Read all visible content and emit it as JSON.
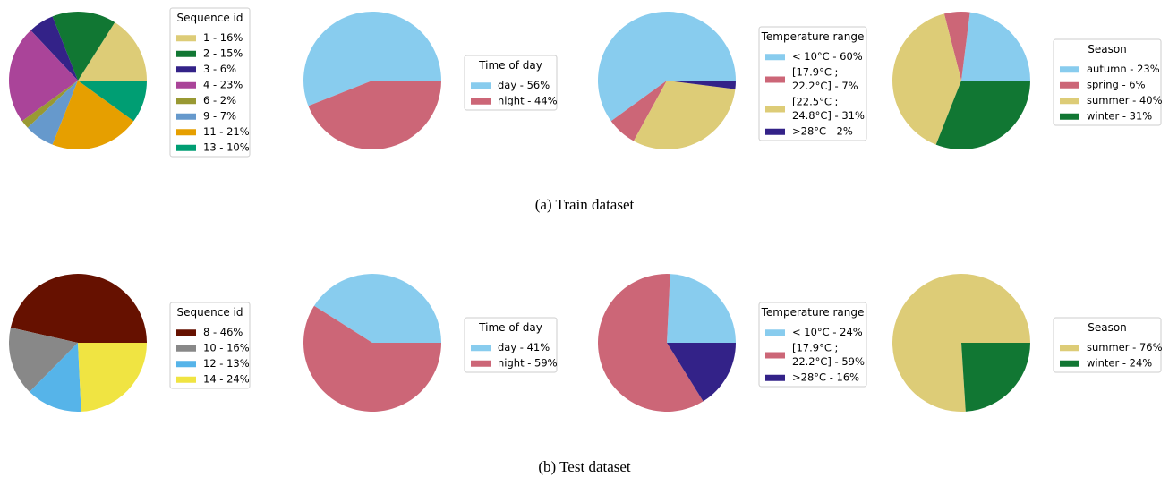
{
  "captions": {
    "train": "(a) Train dataset",
    "test": "(b) Test dataset"
  },
  "chart_data": [
    {
      "type": "pie",
      "panel": "train-sequence",
      "legend_title": "Sequence id",
      "slices": [
        {
          "label": "1 - 16%",
          "value": 16,
          "color": "#DDCC77"
        },
        {
          "label": "2 - 15%",
          "value": 15,
          "color": "#117733"
        },
        {
          "label": "3 - 6%",
          "value": 6,
          "color": "#332288"
        },
        {
          "label": "4 - 23%",
          "value": 23,
          "color": "#AA4499"
        },
        {
          "label": "6 - 2%",
          "value": 2,
          "color": "#999933"
        },
        {
          "label": "9 - 7%",
          "value": 7,
          "color": "#6699CC"
        },
        {
          "label": "11 - 21%",
          "value": 21,
          "color": "#E69F00"
        },
        {
          "label": "13 - 10%",
          "value": 10,
          "color": "#009E73"
        }
      ]
    },
    {
      "type": "pie",
      "panel": "train-time",
      "legend_title": "Time of day",
      "slices": [
        {
          "label": "day - 56%",
          "value": 56,
          "color": "#88CCEE"
        },
        {
          "label": "night - 44%",
          "value": 44,
          "color": "#CC6677"
        }
      ]
    },
    {
      "type": "pie",
      "panel": "train-temperature",
      "legend_title": "Temperature range",
      "slices": [
        {
          "label": "< 10°C - 60%",
          "value": 60,
          "color": "#88CCEE"
        },
        {
          "label": "[17.9°C ;\n22.2°C] - 7%",
          "value": 7,
          "color": "#CC6677"
        },
        {
          "label": "[22.5°C ;\n24.8°C] - 31%",
          "value": 31,
          "color": "#DDCC77"
        },
        {
          "label": ">28°C - 2%",
          "value": 2,
          "color": "#332288"
        }
      ]
    },
    {
      "type": "pie",
      "panel": "train-season",
      "legend_title": "Season",
      "slices": [
        {
          "label": "autumn - 23%",
          "value": 23,
          "color": "#88CCEE"
        },
        {
          "label": "spring - 6%",
          "value": 6,
          "color": "#CC6677"
        },
        {
          "label": "summer - 40%",
          "value": 40,
          "color": "#DDCC77"
        },
        {
          "label": "winter - 31%",
          "value": 31,
          "color": "#117733"
        }
      ]
    },
    {
      "type": "pie",
      "panel": "test-sequence",
      "legend_title": "Sequence id",
      "slices": [
        {
          "label": "8 - 46%",
          "value": 46,
          "color": "#661100"
        },
        {
          "label": "10 - 16%",
          "value": 16,
          "color": "#888888"
        },
        {
          "label": "12 - 13%",
          "value": 13,
          "color": "#56B4E9"
        },
        {
          "label": "14 - 24%",
          "value": 24,
          "color": "#F0E442"
        }
      ]
    },
    {
      "type": "pie",
      "panel": "test-time",
      "legend_title": "Time of day",
      "slices": [
        {
          "label": "day - 41%",
          "value": 41,
          "color": "#88CCEE"
        },
        {
          "label": "night - 59%",
          "value": 59,
          "color": "#CC6677"
        }
      ]
    },
    {
      "type": "pie",
      "panel": "test-temperature",
      "legend_title": "Temperature range",
      "slices": [
        {
          "label": "< 10°C - 24%",
          "value": 24,
          "color": "#88CCEE"
        },
        {
          "label": "[17.9°C ;\n22.2°C] - 59%",
          "value": 59,
          "color": "#CC6677"
        },
        {
          "label": ">28°C - 16%",
          "value": 16,
          "color": "#332288"
        }
      ]
    },
    {
      "type": "pie",
      "panel": "test-season",
      "legend_title": "Season",
      "slices": [
        {
          "label": "summer - 76%",
          "value": 76,
          "color": "#DDCC77"
        },
        {
          "label": "winter - 24%",
          "value": 24,
          "color": "#117733"
        }
      ]
    }
  ]
}
